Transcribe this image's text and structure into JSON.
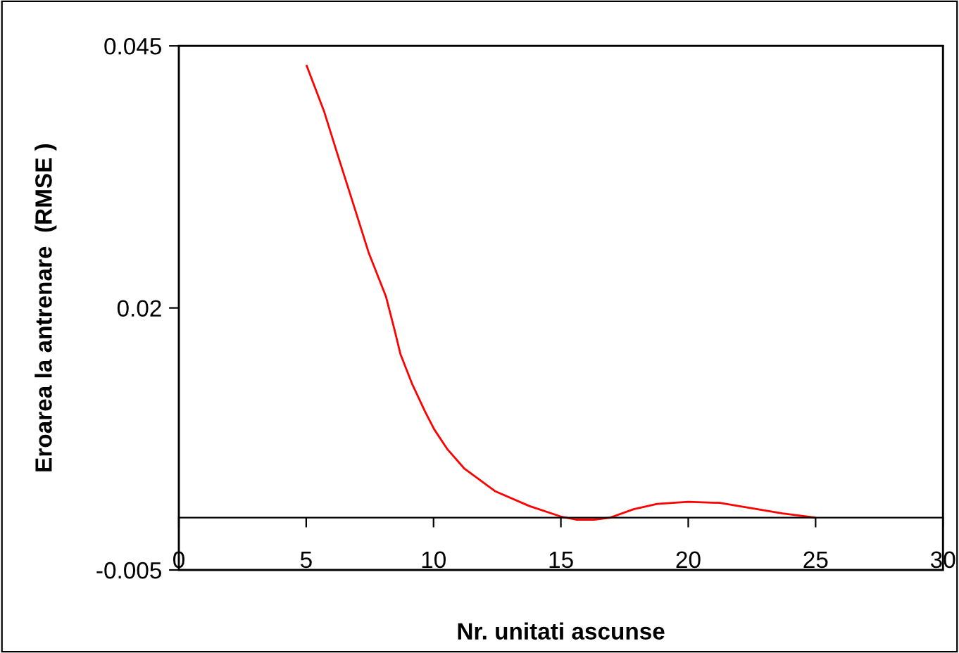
{
  "chart_data": {
    "type": "line",
    "xlabel": "Nr. unitati ascunse",
    "ylabel": "Eroarea la antrenare  (RMSE )",
    "x": [
      5.02,
      5.71,
      6.25,
      6.8,
      7.45,
      8.13,
      8.48,
      8.7,
      9.15,
      9.67,
      10.03,
      10.55,
      11.2,
      12.43,
      13.76,
      14.99,
      15.6,
      16.3,
      16.94,
      17.86,
      18.78,
      20.0,
      21.24,
      22.47,
      23.7,
      24.96
    ],
    "series": [
      {
        "color": "#ff0000",
        "values": [
          0.0431,
          0.0387,
          0.0345,
          0.0303,
          0.0253,
          0.0211,
          0.0178,
          0.0156,
          0.0128,
          0.0101,
          0.0084,
          0.0065,
          0.0047,
          0.0025,
          0.0011,
          0.0001,
          -0.0002,
          -0.0002,
          0.0,
          0.0008,
          0.0013,
          0.0015,
          0.0014,
          0.0009,
          0.0004,
          0.0
        ]
      }
    ],
    "xlim": [
      0,
      30
    ],
    "xticks": [
      0,
      5,
      10,
      15,
      20,
      25,
      30
    ],
    "ylim": [
      -0.005,
      0.045
    ],
    "yticks": [
      -0.005,
      0.02,
      0.045
    ],
    "grid": false,
    "legend": false,
    "marker": "none",
    "line_style": "solid"
  }
}
